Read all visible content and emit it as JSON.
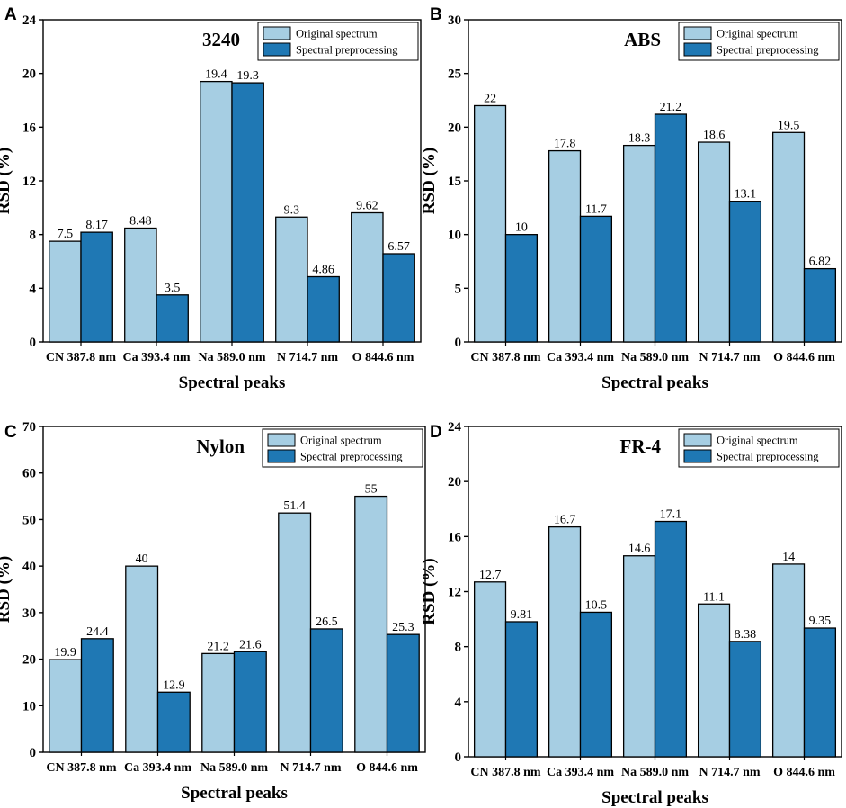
{
  "figure": {
    "legend_entries": [
      "Original spectrum",
      "Spectral preprocessing"
    ],
    "colors": {
      "original": "#a6cee3",
      "preprocessing": "#1f78b4",
      "outline": "#000000"
    }
  },
  "chart_data": [
    {
      "type": "bar",
      "panel": "A",
      "title": "3240",
      "xlabel": "Spectral peaks",
      "ylabel": "RSD (%)",
      "categories": [
        "CN 387.8 nm",
        "Ca 393.4 nm",
        "Na 589.0 nm",
        "N 714.7 nm",
        "O 844.6 nm"
      ],
      "series": [
        {
          "name": "Original spectrum",
          "values": [
            7.5,
            8.48,
            19.4,
            9.3,
            9.62
          ],
          "labels": [
            "7.5",
            "8.48",
            "19.4",
            "9.3",
            "9.62"
          ]
        },
        {
          "name": "Spectral preprocessing",
          "values": [
            8.17,
            3.5,
            19.3,
            4.86,
            6.57
          ],
          "labels": [
            "8.17",
            "3.5",
            "19.3",
            "4.86",
            "6.57"
          ]
        }
      ],
      "ylim": [
        0,
        24
      ],
      "yticks": [
        0,
        4,
        8,
        12,
        16,
        20,
        24
      ],
      "legend_position": "top-right"
    },
    {
      "type": "bar",
      "panel": "B",
      "title": "ABS",
      "xlabel": "Spectral peaks",
      "ylabel": "RSD (%)",
      "categories": [
        "CN 387.8 nm",
        "Ca 393.4 nm",
        "Na 589.0 nm",
        "N 714.7 nm",
        "O 844.6 nm"
      ],
      "series": [
        {
          "name": "Original spectrum",
          "values": [
            22,
            17.8,
            18.3,
            18.6,
            19.5
          ],
          "labels": [
            "22",
            "17.8",
            "18.3",
            "18.6",
            "19.5"
          ]
        },
        {
          "name": "Spectral preprocessing",
          "values": [
            10,
            11.7,
            21.2,
            13.1,
            6.82
          ],
          "labels": [
            "10",
            "11.7",
            "21.2",
            "13.1",
            "6.82"
          ]
        }
      ],
      "ylim": [
        0,
        30
      ],
      "yticks": [
        0,
        5,
        10,
        15,
        20,
        25,
        30
      ],
      "legend_position": "top-right"
    },
    {
      "type": "bar",
      "panel": "C",
      "title": "Nylon",
      "xlabel": "Spectral peaks",
      "ylabel": "RSD (%)",
      "categories": [
        "CN 387.8 nm",
        "Ca 393.4 nm",
        "Na 589.0 nm",
        "N 714.7 nm",
        "O 844.6 nm"
      ],
      "series": [
        {
          "name": "Original spectrum",
          "values": [
            19.9,
            40,
            21.2,
            51.4,
            55
          ],
          "labels": [
            "19.9",
            "40",
            "21.2",
            "51.4",
            "55"
          ]
        },
        {
          "name": "Spectral preprocessing",
          "values": [
            24.4,
            12.9,
            21.6,
            26.5,
            25.3
          ],
          "labels": [
            "24.4",
            "12.9",
            "21.6",
            "26.5",
            "25.3"
          ]
        }
      ],
      "ylim": [
        0,
        70
      ],
      "yticks": [
        0,
        10,
        20,
        30,
        40,
        50,
        60,
        70
      ],
      "legend_position": "top-right"
    },
    {
      "type": "bar",
      "panel": "D",
      "title": "FR-4",
      "xlabel": "Spectral peaks",
      "ylabel": "RSD (%)",
      "categories": [
        "CN 387.8 nm",
        "Ca 393.4 nm",
        "Na 589.0 nm",
        "N 714.7 nm",
        "O 844.6 nm"
      ],
      "series": [
        {
          "name": "Original spectrum",
          "values": [
            12.7,
            16.7,
            14.6,
            11.1,
            14
          ],
          "labels": [
            "12.7",
            "16.7",
            "14.6",
            "11.1",
            "14"
          ]
        },
        {
          "name": "Spectral preprocessing",
          "values": [
            9.81,
            10.5,
            17.1,
            8.38,
            9.35
          ],
          "labels": [
            "9.81",
            "10.5",
            "17.1",
            "8.38",
            "9.35"
          ]
        }
      ],
      "ylim": [
        0,
        24
      ],
      "yticks": [
        0,
        4,
        8,
        12,
        16,
        20,
        24
      ],
      "legend_position": "top-right"
    }
  ]
}
